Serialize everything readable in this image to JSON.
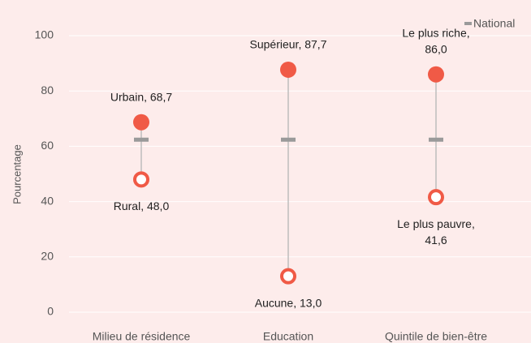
{
  "chart_data": {
    "type": "dumbbell",
    "y_label": "Pourcentage",
    "categories": [
      "Milieu de résidence",
      "Education",
      "Quintile de bien-être"
    ],
    "series": [
      {
        "color": "#f05a46",
        "values": [
          68.7,
          87.7,
          86.0
        ],
        "value_labels": [
          "Urbain, 68,7",
          "Supérieur, 87,7",
          "Le plus riche,\n86,0"
        ]
      },
      {
        "color": "#f05a46",
        "values": [
          48.0,
          13.0,
          41.6
        ],
        "value_labels": [
          "Rural, 48,0",
          "Aucune, 13,0",
          "Le plus pauvre,\n41,6"
        ]
      },
      {
        "name": "National",
        "color": "#9a9a9a",
        "values": [
          62.4,
          62.4,
          62.4
        ]
      }
    ],
    "ylim": [
      0,
      100
    ],
    "yticks": [
      0,
      20,
      40,
      60,
      80,
      100
    ],
    "grid": true,
    "legend": "top-right"
  }
}
